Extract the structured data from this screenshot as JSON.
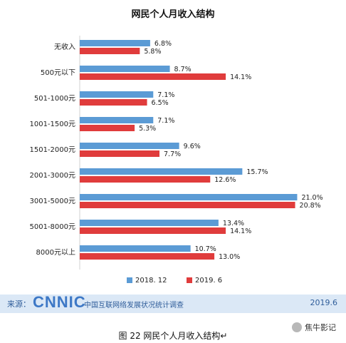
{
  "chart_data": {
    "type": "bar",
    "orientation": "horizontal",
    "title": "网民个人月收入结构",
    "categories": [
      "无收入",
      "500元以下",
      "501-1000元",
      "1001-1500元",
      "1501-2000元",
      "2001-3000元",
      "3001-5000元",
      "5001-8000元",
      "8000元以上"
    ],
    "series": [
      {
        "name": "2018. 12",
        "color": "#5b9bd5",
        "values": [
          6.8,
          8.7,
          7.1,
          7.1,
          9.6,
          15.7,
          21.0,
          13.4,
          10.7
        ],
        "labels": [
          "6.8%",
          "8.7%",
          "7.1%",
          "7.1%",
          "9.6%",
          "15.7%",
          "21.0%",
          "13.4%",
          "10.7%"
        ]
      },
      {
        "name": "2019. 6",
        "color": "#e03c3c",
        "values": [
          5.8,
          14.1,
          6.5,
          5.3,
          7.7,
          12.6,
          20.8,
          14.1,
          13.0
        ],
        "labels": [
          "5.8%",
          "14.1%",
          "6.5%",
          "5.3%",
          "7.7%",
          "12.6%",
          "20.8%",
          "14.1%",
          "13.0%"
        ]
      }
    ],
    "xlim": [
      0,
      22
    ],
    "legend_position": "bottom-center",
    "grid": false
  },
  "footer": {
    "source_label": "来源：",
    "logo": "CNNIC",
    "org": "中国互联网络发展状况统计调查",
    "date": "2019.6",
    "bar_color": "#dbe8f6"
  },
  "caption": "图  22    网民个人月收入结构↵",
  "watermark": {
    "text": "焦牛影记",
    "icon": "wechat-icon"
  }
}
